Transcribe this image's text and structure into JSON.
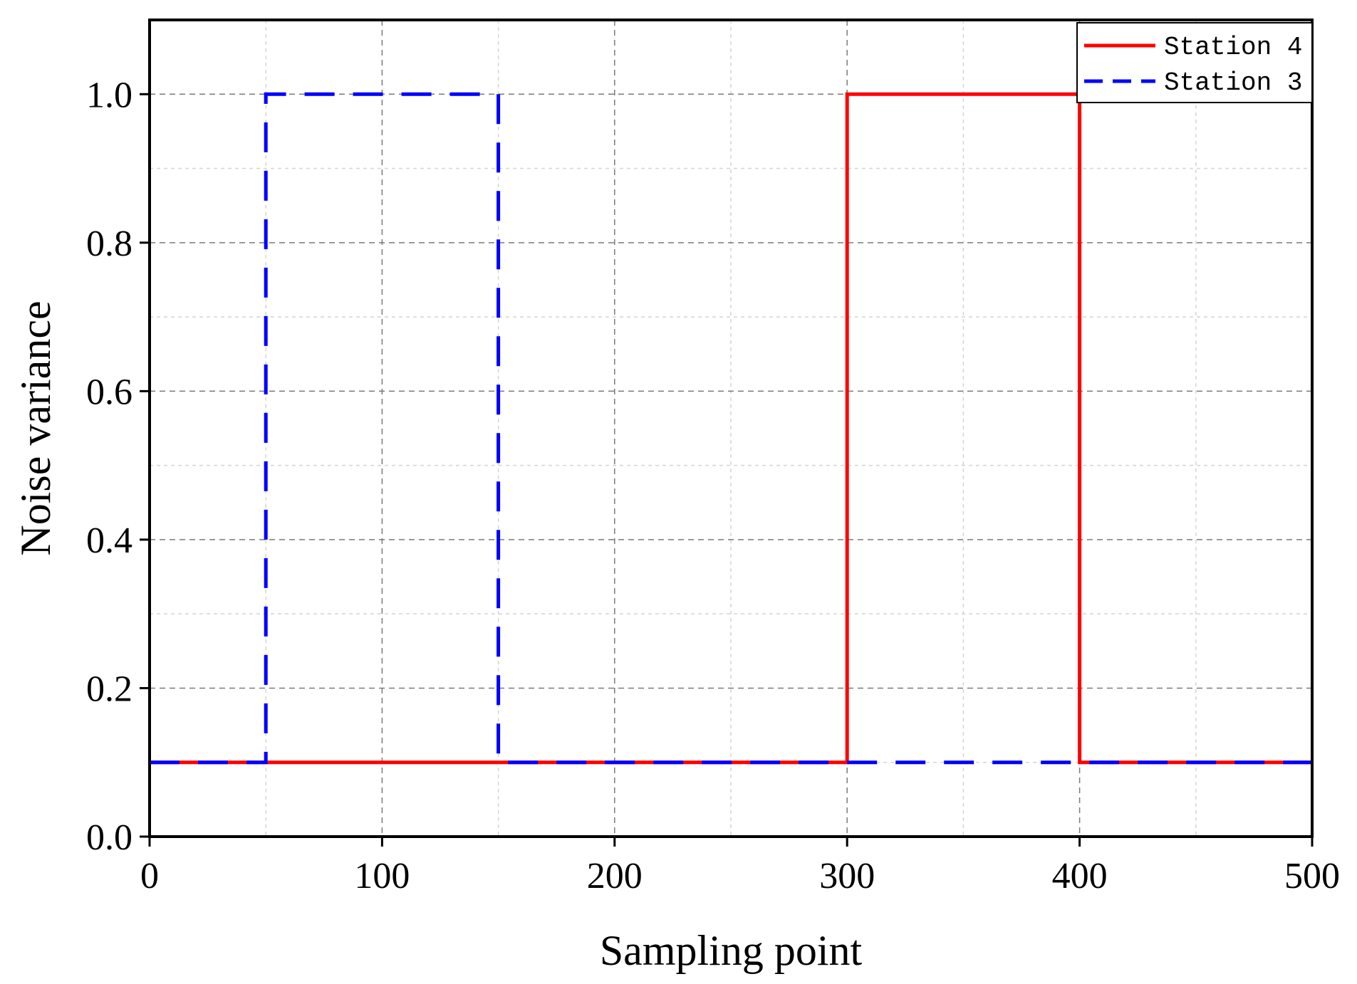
{
  "chart_data": {
    "type": "line",
    "xlabel": "Sampling point",
    "ylabel": "Noise variance",
    "xlim": [
      0,
      500
    ],
    "ylim": [
      0,
      1.1
    ],
    "xticks": [
      0,
      100,
      200,
      300,
      400,
      500
    ],
    "yticks": [
      0.0,
      0.2,
      0.4,
      0.6,
      0.8,
      1.0
    ],
    "xtick_labels": [
      "0",
      "100",
      "200",
      "300",
      "400",
      "500"
    ],
    "ytick_labels": [
      "0.0",
      "0.2",
      "0.4",
      "0.6",
      "0.8",
      "1.0"
    ],
    "grid": true,
    "legend_position": "top-right",
    "series": [
      {
        "name": "Station 4",
        "color": "#ff0000",
        "style": "solid",
        "x": [
          0,
          300,
          300,
          400,
          400,
          500
        ],
        "y": [
          0.1,
          0.1,
          1.0,
          1.0,
          0.1,
          0.1
        ]
      },
      {
        "name": "Station 3",
        "color": "#0000ff",
        "style": "dashed",
        "x": [
          0,
          50,
          50,
          150,
          150,
          500
        ],
        "y": [
          0.1,
          0.1,
          1.0,
          1.0,
          0.1,
          0.1
        ]
      }
    ]
  }
}
